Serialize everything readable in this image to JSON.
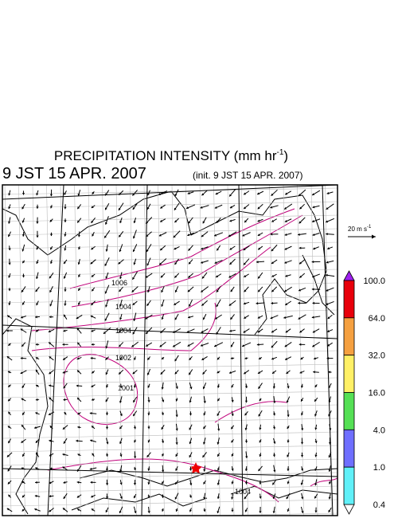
{
  "header": {
    "title": "PRECIPITATION INTENSITY (mm hr",
    "title_exponent": "-1",
    "title_close": ")",
    "valid_time": "9 JST 15 APR. 2007",
    "init_time": "(init. 9 JST 15 APR. 2007)"
  },
  "vector_legend": {
    "label": "20 m s",
    "label_exponent": "-1"
  },
  "colorbar": {
    "levels": [
      "100.0",
      "64.0",
      "32.0",
      "16.0",
      "4.0",
      "1.0",
      "0.4"
    ]
  },
  "map": {
    "contour_labels": [
      "1006",
      "1004",
      "1004",
      "1002",
      "1001",
      "1004"
    ]
  }
}
